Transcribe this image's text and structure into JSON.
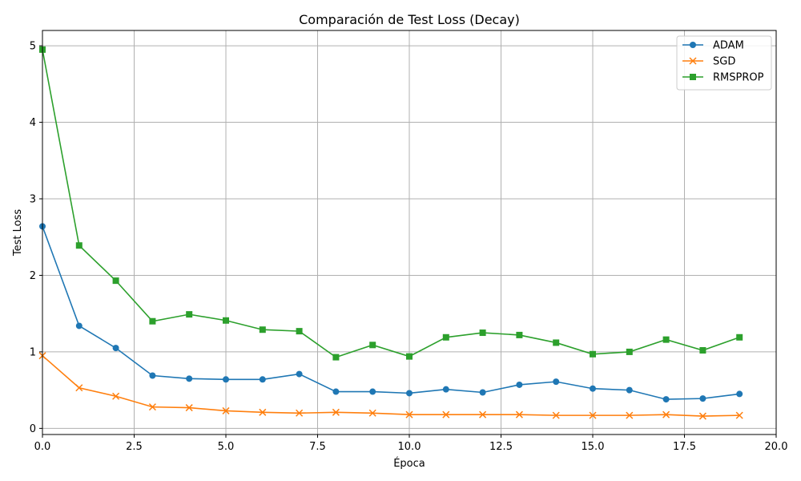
{
  "chart_data": {
    "type": "line",
    "title": "Comparación de Test Loss (Decay)",
    "xlabel": "Época",
    "ylabel": "Test Loss",
    "xlim": [
      0,
      20
    ],
    "ylim": [
      -0.08,
      5.2
    ],
    "xticks": [
      0,
      2.5,
      5,
      7.5,
      10,
      12.5,
      15,
      17.5,
      20
    ],
    "xtick_labels": [
      "0.0",
      "2.5",
      "5.0",
      "7.5",
      "10.0",
      "12.5",
      "15.0",
      "17.5",
      "20.0"
    ],
    "yticks": [
      0,
      1,
      2,
      3,
      4,
      5
    ],
    "ytick_labels": [
      "0",
      "1",
      "2",
      "3",
      "4",
      "5"
    ],
    "grid": true,
    "legend_position": "top-right",
    "x": [
      0,
      1,
      2,
      3,
      4,
      5,
      6,
      7,
      8,
      9,
      10,
      11,
      12,
      13,
      14,
      15,
      16,
      17,
      18,
      19
    ],
    "series": [
      {
        "name": "ADAM",
        "color": "#1f77b4",
        "marker": "circle",
        "values": [
          2.64,
          1.34,
          1.05,
          0.69,
          0.65,
          0.64,
          0.64,
          0.71,
          0.48,
          0.48,
          0.46,
          0.51,
          0.47,
          0.57,
          0.61,
          0.52,
          0.5,
          0.38,
          0.39,
          0.45
        ]
      },
      {
        "name": "SGD",
        "color": "#ff7f0e",
        "marker": "x",
        "values": [
          0.95,
          0.53,
          0.42,
          0.28,
          0.27,
          0.23,
          0.21,
          0.2,
          0.21,
          0.2,
          0.18,
          0.18,
          0.18,
          0.18,
          0.17,
          0.17,
          0.17,
          0.18,
          0.16,
          0.17
        ]
      },
      {
        "name": "RMSPROP",
        "color": "#2ca02c",
        "marker": "square",
        "values": [
          4.95,
          2.39,
          1.93,
          1.4,
          1.49,
          1.41,
          1.29,
          1.27,
          0.93,
          1.09,
          0.94,
          1.19,
          1.25,
          1.22,
          1.12,
          0.97,
          1.0,
          1.16,
          1.02,
          1.19
        ]
      }
    ]
  }
}
